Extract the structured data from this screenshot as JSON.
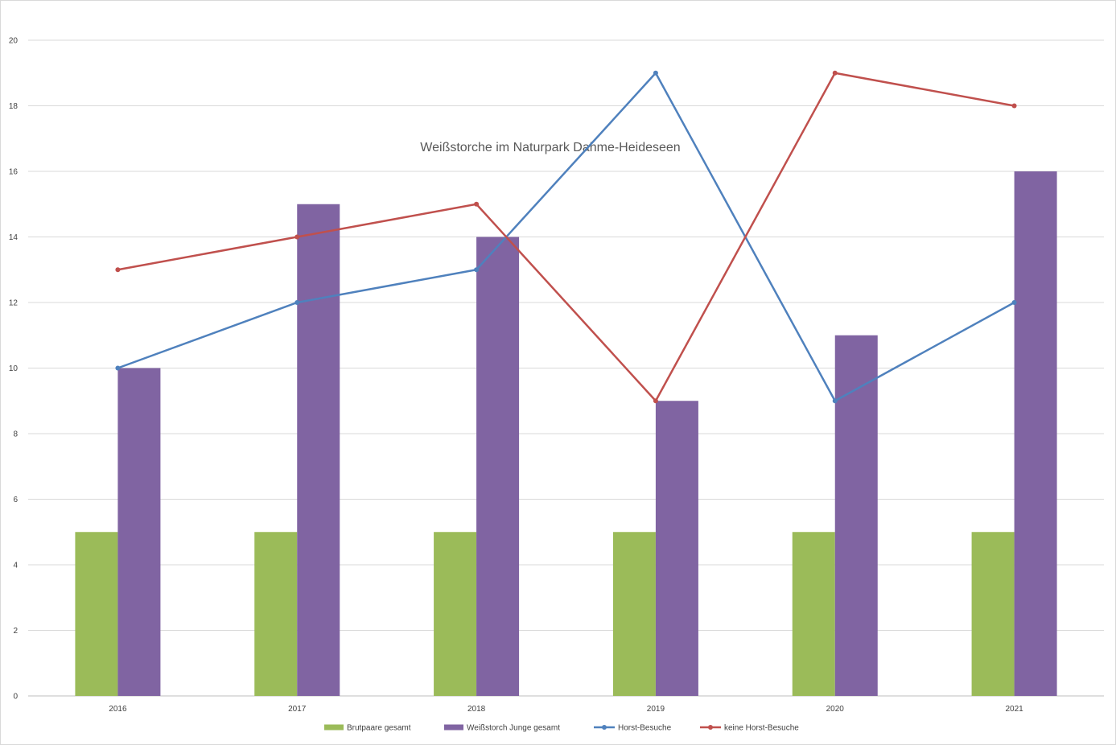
{
  "chart_data": {
    "type": "bar",
    "title": "Weißstorche im Naturpark Dahme-Heideseen",
    "categories": [
      "2016",
      "2017",
      "2018",
      "2019",
      "2020",
      "2021"
    ],
    "ylim": [
      0,
      20
    ],
    "yticks": [
      "0",
      "2",
      "4",
      "6",
      "8",
      "10",
      "12",
      "14",
      "16",
      "18",
      "20"
    ],
    "grid": true,
    "legend_position": "bottom",
    "series": [
      {
        "name": "Brutpaare gesamt",
        "kind": "bar",
        "color": "#9bbb59",
        "values": [
          5,
          5,
          5,
          5,
          5,
          5
        ]
      },
      {
        "name": "Weißstorch Junge gesamt",
        "kind": "bar",
        "color": "#8064a2",
        "values": [
          10,
          15,
          14,
          9,
          11,
          16
        ]
      },
      {
        "name": "Horst-Besuche",
        "kind": "line",
        "color": "#4f81bd",
        "values": [
          10,
          12,
          13,
          19,
          9,
          12
        ]
      },
      {
        "name": "keine Horst-Besuche",
        "kind": "line",
        "color": "#c0504d",
        "values": [
          13,
          14,
          15,
          9,
          19,
          18
        ]
      }
    ]
  }
}
